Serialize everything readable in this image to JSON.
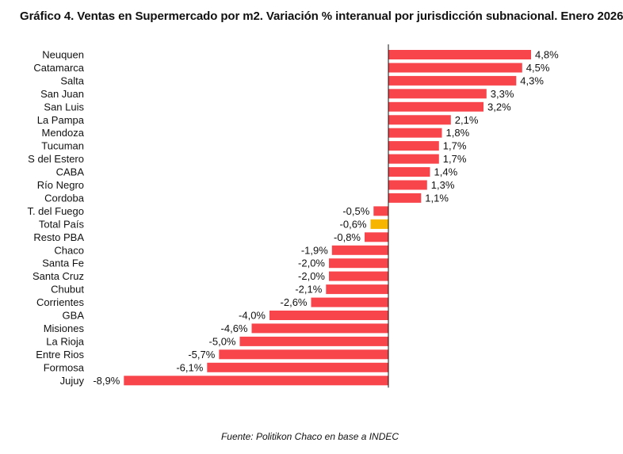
{
  "chart_data": {
    "type": "bar",
    "orientation": "horizontal",
    "title": "Gráfico 4. Ventas en Supermercado por m2. Variación % interanual por jurisdicción subnacional. Enero 2026",
    "categories": [
      "Neuquen",
      "Catamarca",
      "Salta",
      "San Juan",
      "San Luis",
      "La Pampa",
      "Mendoza",
      "Tucuman",
      "S del Estero",
      "CABA",
      "Río Negro",
      "Cordoba",
      "T. del Fuego",
      "Total País",
      "Resto PBA",
      "Chaco",
      "Santa Fe",
      "Santa Cruz",
      "Chubut",
      "Corrientes",
      "GBA",
      "Misiones",
      "La Rioja",
      "Entre Rios",
      "Formosa",
      "Jujuy"
    ],
    "values": [
      4.8,
      4.5,
      4.3,
      3.3,
      3.2,
      2.1,
      1.8,
      1.7,
      1.7,
      1.4,
      1.3,
      1.1,
      -0.5,
      -0.6,
      -0.8,
      -1.9,
      -2.0,
      -2.0,
      -2.1,
      -2.6,
      -4.0,
      -4.6,
      -5.0,
      -5.7,
      -6.1,
      -8.9
    ],
    "value_labels": [
      "4,8%",
      "4,5%",
      "4,3%",
      "3,3%",
      "3,2%",
      "2,1%",
      "1,8%",
      "1,7%",
      "1,7%",
      "1,4%",
      "1,3%",
      "1,1%",
      "-0,5%",
      "-0,6%",
      "-0,8%",
      "-1,9%",
      "-2,0%",
      "-2,0%",
      "-2,1%",
      "-2,6%",
      "-4,0%",
      "-4,6%",
      "-5,0%",
      "-5,7%",
      "-6,1%",
      "-8,9%"
    ],
    "highlight_category": "Total País",
    "xlim": [
      -9.0,
      4.8
    ],
    "grid": false,
    "legend": "none",
    "colors": {
      "bar": "#f8454c",
      "highlight": "#f7b500",
      "axis": "#111111"
    },
    "source": "Fuente: Politikon Chaco en base a INDEC"
  }
}
